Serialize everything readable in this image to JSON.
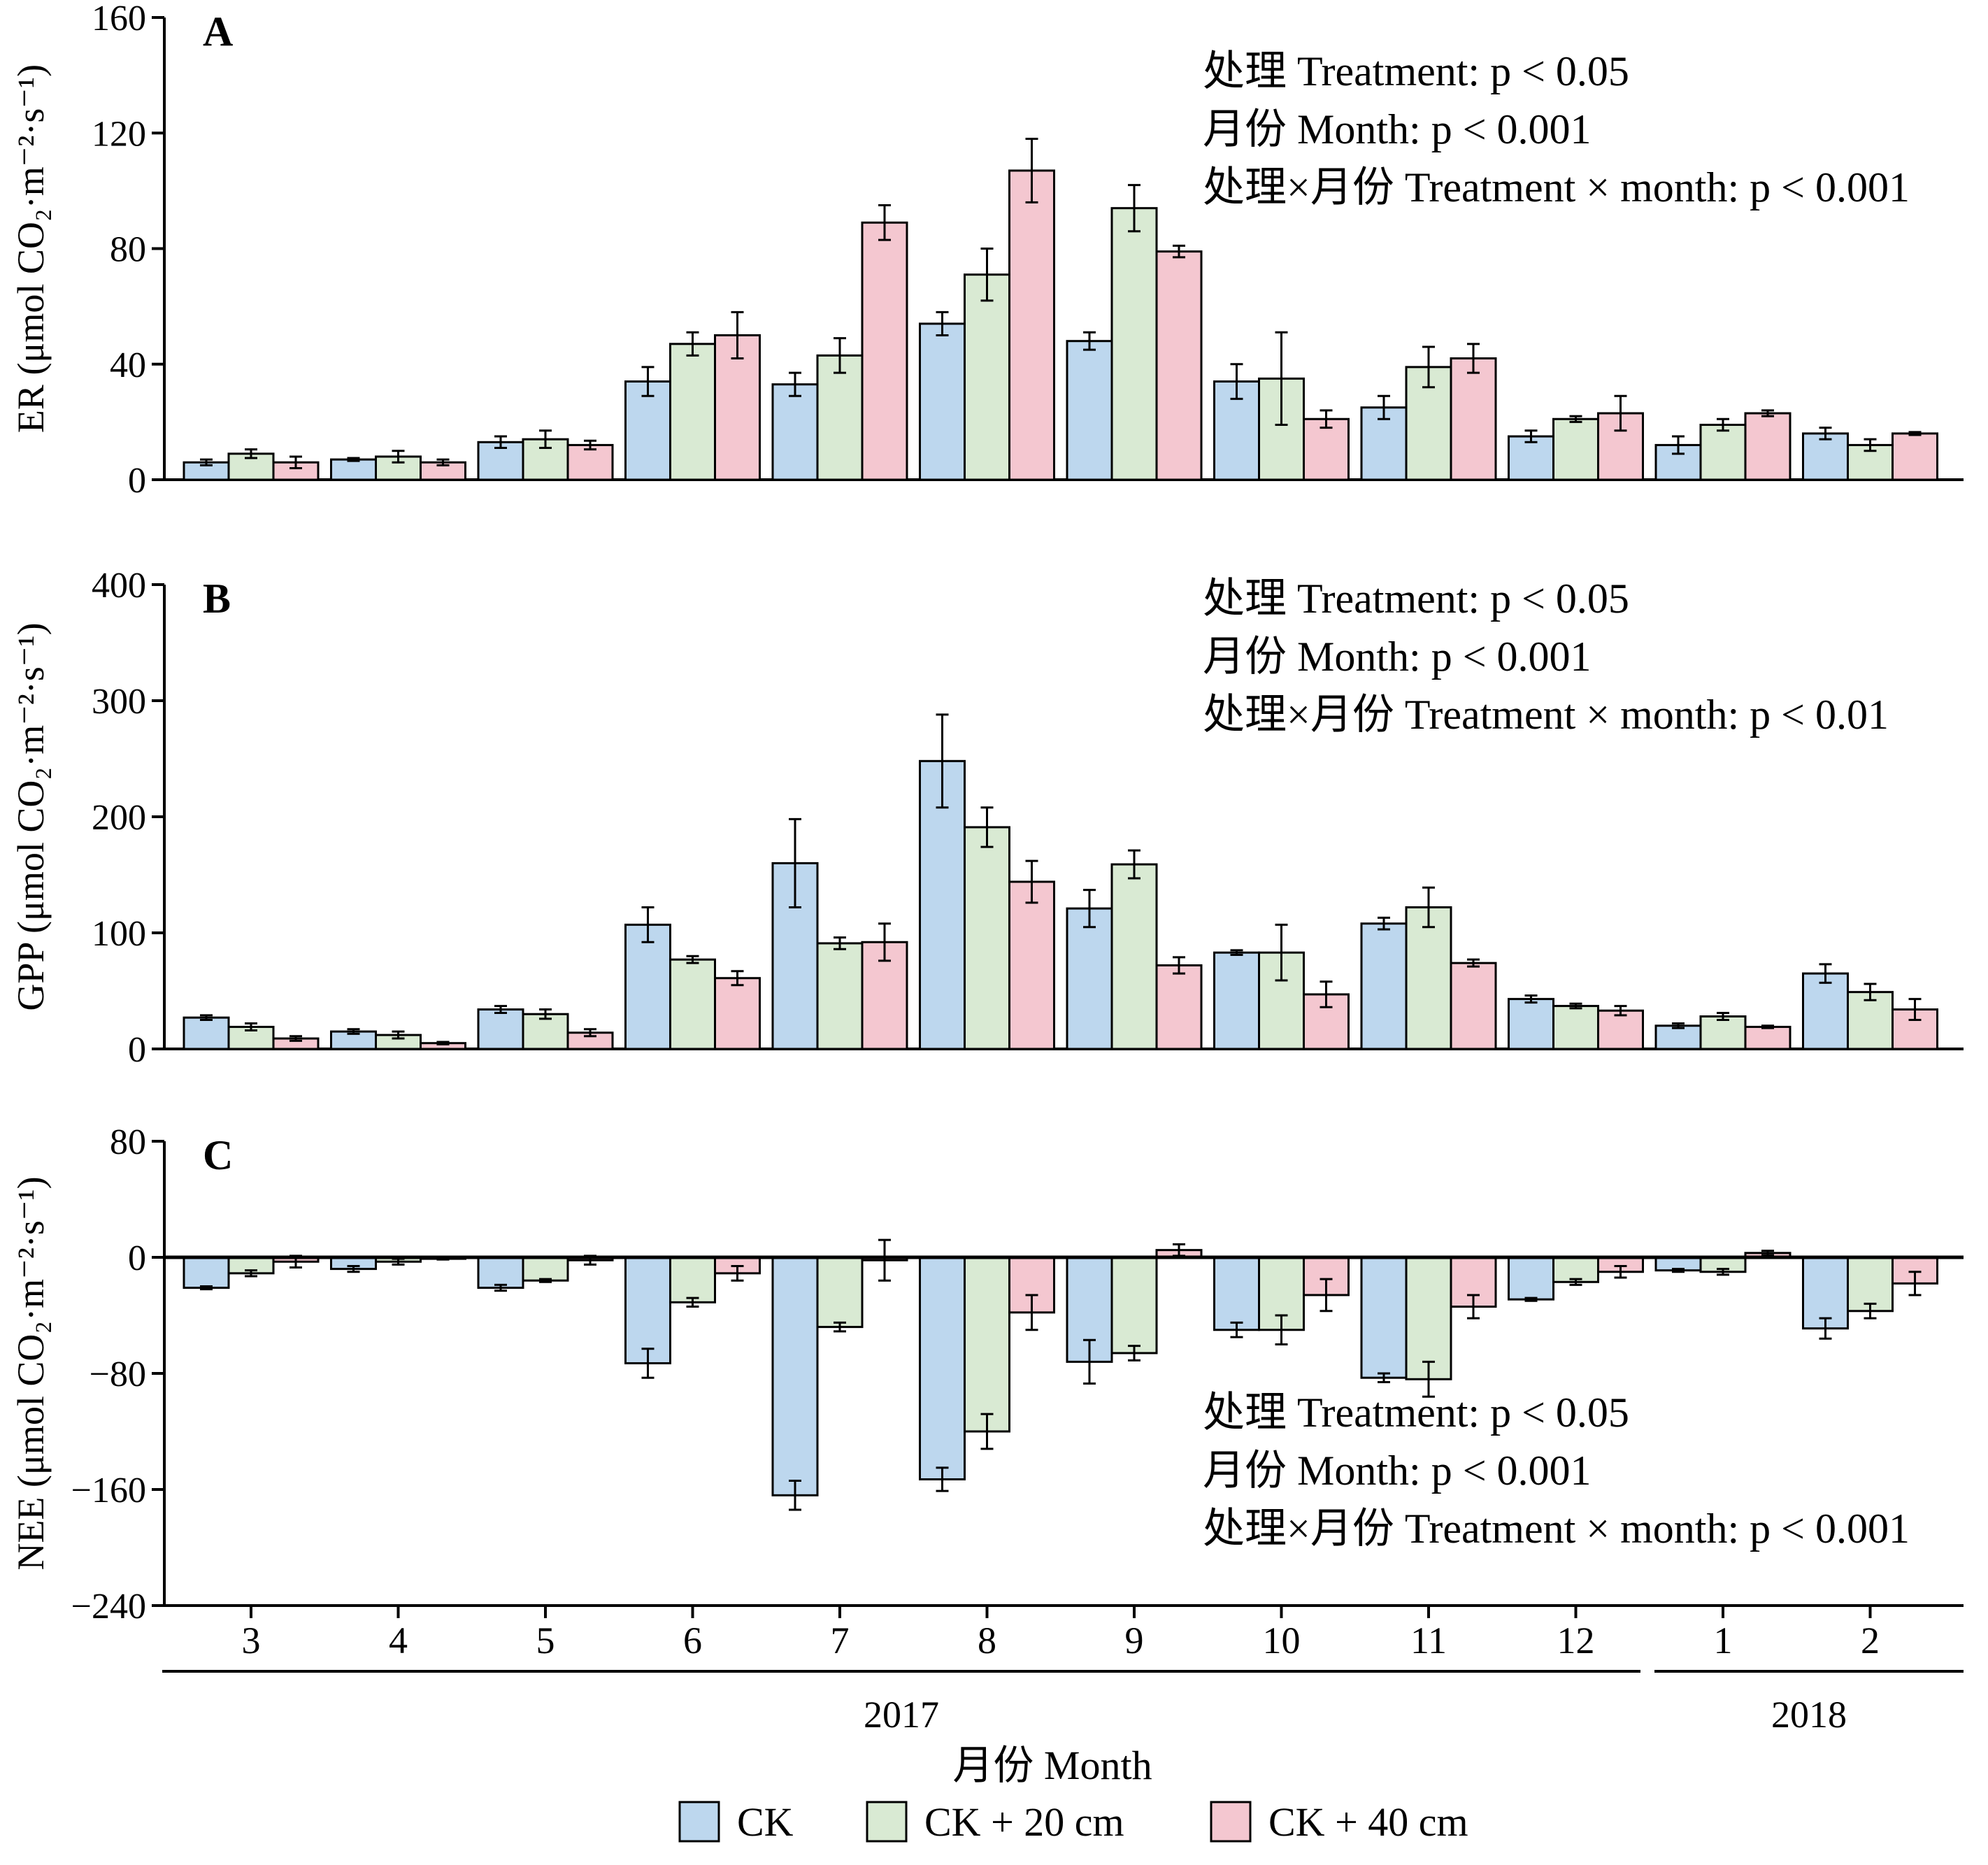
{
  "chart_data": {
    "type": "bar",
    "categories": [
      "3",
      "4",
      "5",
      "6",
      "7",
      "8",
      "9",
      "10",
      "11",
      "12",
      "1",
      "2"
    ],
    "year_groups": [
      {
        "label": "2017",
        "categories": [
          "3",
          "4",
          "5",
          "6",
          "7",
          "8",
          "9",
          "10",
          "11",
          "12"
        ]
      },
      {
        "label": "2018",
        "categories": [
          "1",
          "2"
        ]
      }
    ],
    "xlabel": "月份 Month",
    "legend": {
      "placement": "bottom",
      "entries": [
        "CK",
        "CK + 20 cm",
        "CK + 40 cm"
      ]
    },
    "colors": {
      "CK": "#bdd7ee",
      "CK + 20 cm": "#d9ead3",
      "CK + 40 cm": "#f4c7d0",
      "edge": "#000000"
    },
    "panels": [
      {
        "id": "A",
        "label": "A",
        "ylabel": "ER (μmol CO₂·m⁻²·s⁻¹)",
        "ylim": [
          0,
          160
        ],
        "yticks": [
          0,
          40,
          80,
          120,
          160
        ],
        "stats": [
          "处理 Treatment: p < 0.05",
          "月份 Month: p < 0.001",
          "处理×月份 Treatment × month: p < 0.001"
        ],
        "series": [
          {
            "name": "CK",
            "values": [
              6,
              7,
              13,
              34,
              33,
              54,
              48,
              34,
              25,
              15,
              12,
              16
            ],
            "errors": [
              1,
              0.5,
              2,
              5,
              4,
              4,
              3,
              6,
              4,
              2,
              3,
              2
            ]
          },
          {
            "name": "CK + 20 cm",
            "values": [
              9,
              8,
              14,
              47,
              43,
              71,
              94,
              35,
              39,
              21,
              19,
              12
            ],
            "errors": [
              1.5,
              2,
              3,
              4,
              6,
              9,
              8,
              16,
              7,
              1,
              2,
              2
            ]
          },
          {
            "name": "CK + 40 cm",
            "values": [
              6,
              6,
              12,
              50,
              89,
              107,
              79,
              21,
              42,
              23,
              23,
              16
            ],
            "errors": [
              2,
              1,
              1.5,
              8,
              6,
              11,
              2,
              3,
              5,
              6,
              1,
              0.5
            ]
          }
        ]
      },
      {
        "id": "B",
        "label": "B",
        "ylabel": "GPP (μmol CO₂·m⁻²·s⁻¹)",
        "ylim": [
          0,
          400
        ],
        "yticks": [
          0,
          100,
          200,
          300,
          400
        ],
        "stats": [
          "处理 Treatment: p < 0.05",
          "月份 Month: p < 0.001",
          "处理×月份 Treatment × month: p < 0.01"
        ],
        "series": [
          {
            "name": "CK",
            "values": [
              27,
              15,
              34,
              107,
              160,
              248,
              121,
              83,
              108,
              43,
              20,
              65
            ],
            "errors": [
              2,
              2,
              3,
              15,
              38,
              40,
              16,
              2,
              5,
              3,
              2,
              8
            ]
          },
          {
            "name": "CK + 20 cm",
            "values": [
              19,
              12,
              30,
              77,
              91,
              191,
              159,
              83,
              122,
              37,
              28,
              49
            ],
            "errors": [
              3,
              3,
              4,
              3,
              5,
              17,
              12,
              24,
              17,
              2,
              3,
              7
            ]
          },
          {
            "name": "CK + 40 cm",
            "values": [
              9,
              5,
              14,
              61,
              92,
              144,
              72,
              47,
              74,
              33,
              19,
              34
            ],
            "errors": [
              2,
              1,
              3,
              6,
              16,
              18,
              7,
              11,
              3,
              4,
              1,
              9
            ]
          }
        ]
      },
      {
        "id": "C",
        "label": "C",
        "ylabel": "NEE (μmol CO₂·m⁻²·s⁻¹)",
        "ylim": [
          -240,
          80
        ],
        "yticks": [
          -240,
          -160,
          -80,
          0,
          80
        ],
        "stats": [
          "处理 Treatment: p < 0.05",
          "月份 Month: p < 0.001",
          "处理×月份 Treatment × month: p < 0.001"
        ],
        "series": [
          {
            "name": "CK",
            "values": [
              -21,
              -8,
              -21,
              -73,
              -164,
              -153,
              -72,
              -50,
              -83,
              -29,
              -9,
              -49
            ],
            "errors": [
              1,
              2,
              2,
              10,
              10,
              8,
              15,
              5,
              3,
              1,
              1,
              7
            ]
          },
          {
            "name": "CK + 20 cm",
            "values": [
              -11,
              -3,
              -16,
              -31,
              -48,
              -120,
              -66,
              -50,
              -84,
              -17,
              -10,
              -37
            ],
            "errors": [
              2,
              2,
              1,
              3,
              3,
              12,
              5,
              10,
              12,
              2,
              2,
              5
            ]
          },
          {
            "name": "CK + 40 cm",
            "values": [
              -3,
              -1,
              -2,
              -11,
              -2,
              -38,
              5,
              -26,
              -34,
              -10,
              3,
              -18
            ],
            "errors": [
              4,
              0.5,
              3,
              5,
              14,
              12,
              4,
              11,
              8,
              4,
              1.5,
              8
            ]
          }
        ]
      }
    ]
  }
}
